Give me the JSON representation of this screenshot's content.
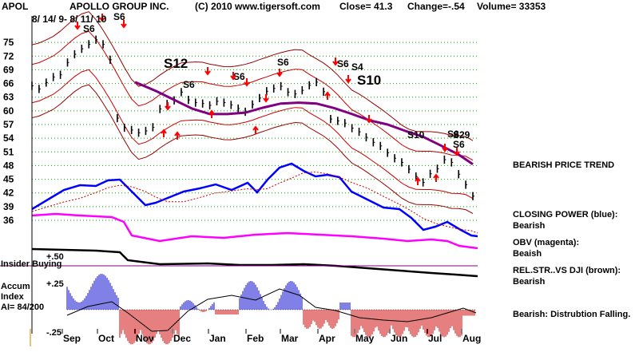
{
  "header": {
    "ticker": "APOL",
    "company": "APOLLO GROUP INC.",
    "copyright": "(C) 2010 www.tigersoft.com",
    "close": "Close=  41.3",
    "change": "Change=-.54",
    "volume": "Volume=  33353"
  },
  "top_left_dates": "8/ 14/ 9- 8/ 11/ 10",
  "side_notes": {
    "price_trend": "BEARISH PRICE TREND",
    "cp_title": "CLOSING POWER (blue):",
    "cp_value": "Bearish",
    "obv_title": "OBV (magenta):",
    "obv_value": "Beaish",
    "rs_title": "REL.STR..VS DJI (brown):",
    "rs_value": "Bearish",
    "accum_note": "Bearish:  Distrubtion Falling."
  },
  "left_labels": {
    "insider": "Insider Buying",
    "plus50": "+.50",
    "accum1": "Accum",
    "accum2": "Index",
    "ai": "AI= 84/200",
    "plus25": "+.25",
    "minus25": "-.25"
  },
  "chart_data": {
    "type": "line",
    "ylim": [
      36,
      78
    ],
    "y_ticks": [
      36,
      39,
      42,
      45,
      48,
      51,
      54,
      57,
      60,
      63,
      66,
      69,
      72,
      75
    ],
    "x_ticks": [
      "Sep",
      "Oct",
      "Nov",
      "Dec",
      "Jan",
      "Feb",
      "Mar",
      "Apr",
      "May",
      "Jun",
      "Jul",
      "Aug"
    ],
    "price_series": {
      "name": "APOL daily close",
      "x": [
        0,
        4,
        8,
        12,
        16,
        20,
        24,
        28,
        32,
        36,
        40,
        44,
        48,
        52,
        56,
        60,
        64,
        68,
        72,
        76,
        80,
        84,
        88,
        92,
        96,
        100,
        104,
        108,
        112,
        116,
        120,
        124,
        128,
        132,
        136,
        140,
        144,
        148,
        152,
        156,
        160,
        164,
        168,
        172,
        176,
        180,
        184,
        188,
        192,
        196,
        200,
        204,
        208,
        212,
        216,
        220,
        224,
        228,
        232,
        236,
        240,
        244,
        248
      ],
      "values": [
        65.5,
        64.8,
        66.2,
        67.4,
        67.9,
        70.6,
        72.4,
        73.6,
        74.6,
        75.6,
        74.6,
        71.2,
        58.4,
        56.3,
        55.8,
        55.2,
        55.6,
        56.4,
        60.4,
        61.5,
        62.3,
        64.1,
        62.4,
        61.8,
        61.6,
        61.2,
        62.1,
        61.8,
        61.3,
        60.5,
        59.8,
        61.4,
        62.8,
        64.3,
        64.9,
        65.4,
        64.1,
        63.7,
        64.5,
        65.6,
        66.3,
        64.2,
        58.2,
        57.8,
        57.3,
        56.2,
        55.4,
        54.2,
        53.1,
        52.3,
        50.8,
        49.6,
        48.7,
        47.2,
        45.6,
        44.3,
        46.2,
        47.3,
        49.3,
        48.7,
        46.1,
        43.8,
        41.3
      ]
    },
    "ma_series": {
      "name": "moving average (purple)",
      "x": [
        58,
        70,
        80,
        90,
        100,
        110,
        120,
        130,
        140,
        150,
        160,
        170,
        180,
        190,
        200,
        210,
        220,
        230,
        240,
        248
      ],
      "values": [
        66.3,
        64.3,
        62.4,
        60.5,
        59.3,
        59.3,
        59.6,
        60.7,
        61.6,
        61.8,
        61.6,
        60.6,
        59.3,
        57.9,
        57.0,
        55.6,
        54.3,
        52.4,
        50.4,
        48.3
      ]
    },
    "signals": [
      "S6",
      "S6",
      "S12",
      "S6",
      "S6",
      "S6",
      "S6",
      "S4",
      "S10",
      "S10",
      "S6",
      "S6",
      "S29"
    ],
    "obv_series": {
      "name": "OBV (magenta)",
      "trend": "falling"
    },
    "closing_power_series": {
      "name": "CLOSING POWER (blue)",
      "trend": "falling"
    },
    "rel_strength_series": {
      "name": "REL.STR..VS DJI (brown)",
      "trend": "falling"
    },
    "accum_index": {
      "range": [
        -0.25,
        0.25
      ],
      "value": "AI= 84/200"
    },
    "colors": {
      "price": "#000000",
      "bands": "#cc0000",
      "ma": "#800080",
      "closing_power": "#0000ff",
      "obv": "#ff00ff",
      "rel_strength": "#000000",
      "accum_pos": "#0000cc",
      "accum_neg": "#cc0000",
      "grid": "#00aa00",
      "arrows": "#ff0000"
    }
  }
}
